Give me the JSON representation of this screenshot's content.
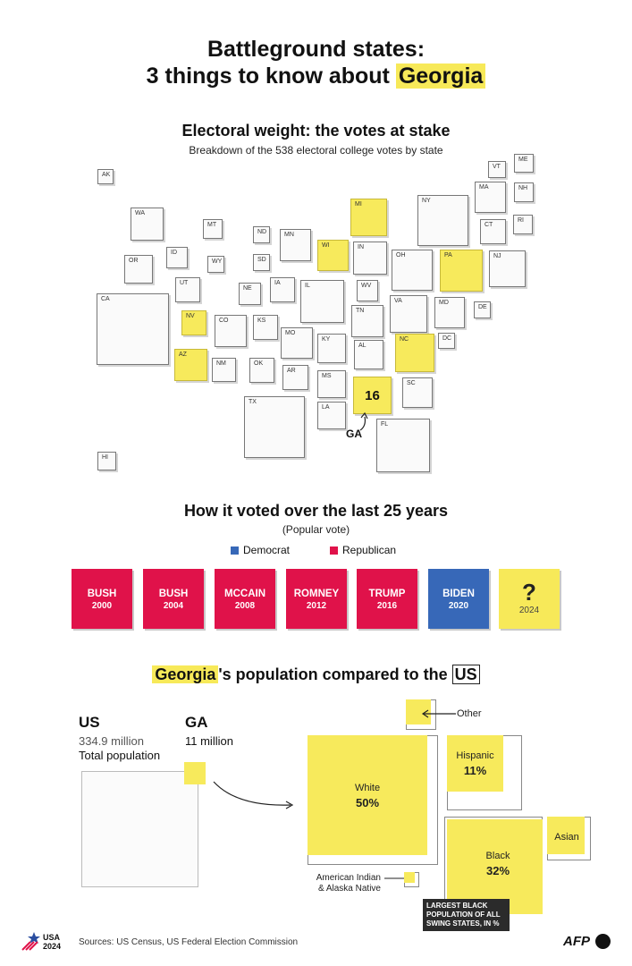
{
  "header": {
    "title_line1": "Battleground states:",
    "title_line2_pre": "3 things to know about ",
    "title_line2_highlight": "Georgia"
  },
  "section1": {
    "title": "Electoral weight: the votes at stake",
    "subtitle": "Breakdown of the 538 electoral college votes by state"
  },
  "chart_data": [
    {
      "type": "other",
      "title": "Electoral weight: the votes at stake",
      "subtitle": "Breakdown of the 538 electoral college votes by state",
      "battleground_states": [
        "MI",
        "WI",
        "PA",
        "NV",
        "AZ",
        "NC",
        "GA"
      ],
      "highlight": {
        "state": "GA",
        "votes": 16
      },
      "states": [
        "AK",
        "WA",
        "MT",
        "ND",
        "MN",
        "WI",
        "MI",
        "NY",
        "VT",
        "ME",
        "MA",
        "NH",
        "RI",
        "CT",
        "NJ",
        "PA",
        "OH",
        "IN",
        "IL",
        "IA",
        "SD",
        "WY",
        "ID",
        "OR",
        "UT",
        "NE",
        "CA",
        "NV",
        "CO",
        "KS",
        "MO",
        "KY",
        "WV",
        "VA",
        "MD",
        "DE",
        "DC",
        "TN",
        "AL",
        "NC",
        "SC",
        "GA",
        "FL",
        "MS",
        "LA",
        "AR",
        "OK",
        "NM",
        "AZ",
        "TX",
        "HI"
      ]
    },
    {
      "type": "table",
      "title": "How it voted over the last 25 years",
      "subtitle": "(Popular vote)",
      "legend": [
        {
          "name": "Democrat",
          "color": "#3768b8"
        },
        {
          "name": "Republican",
          "color": "#e0124a"
        }
      ],
      "results": [
        {
          "candidate": "BUSH",
          "year": "2000",
          "party": "rep"
        },
        {
          "candidate": "BUSH",
          "year": "2004",
          "party": "rep"
        },
        {
          "candidate": "MCCAIN",
          "year": "2008",
          "party": "rep"
        },
        {
          "candidate": "ROMNEY",
          "year": "2012",
          "party": "rep"
        },
        {
          "candidate": "TRUMP",
          "year": "2016",
          "party": "rep"
        },
        {
          "candidate": "BIDEN",
          "year": "2020",
          "party": "dem"
        },
        {
          "candidate": "?",
          "year": "2024",
          "party": "unknown"
        }
      ]
    },
    {
      "type": "other",
      "title": "Georgia's population compared to the US",
      "population": [
        {
          "name": "US",
          "value": "334.9 million",
          "label": "Total population"
        },
        {
          "name": "GA",
          "value": "11 million"
        }
      ],
      "breakdown_percent": [
        {
          "name": "White",
          "value": 50
        },
        {
          "name": "Black",
          "value": 32
        },
        {
          "name": "Hispanic",
          "value": 11
        },
        {
          "name": "Asian"
        },
        {
          "name": "Other"
        },
        {
          "name": "American Indian & Alaska Native"
        }
      ]
    }
  ],
  "map": {
    "states": {
      "AK": "AK",
      "WA": "WA",
      "MT": "MT",
      "ND": "ND",
      "MN": "MN",
      "WI": "WI",
      "MI": "MI",
      "NY": "NY",
      "VT": "VT",
      "ME": "ME",
      "MA": "MA",
      "NH": "NH",
      "RI": "RI",
      "CT": "CT",
      "NJ": "NJ",
      "PA": "PA",
      "OH": "OH",
      "IN": "IN",
      "IL": "IL",
      "IA": "IA",
      "SD": "SD",
      "WY": "WY",
      "ID": "ID",
      "OR": "OR",
      "UT": "UT",
      "NE": "NE",
      "CA": "CA",
      "NV": "NV",
      "CO": "CO",
      "KS": "KS",
      "MO": "MO",
      "KY": "KY",
      "WV": "WV",
      "VA": "VA",
      "MD": "MD",
      "DE": "DE",
      "DC": "DC",
      "TN": "TN",
      "AL": "AL",
      "NC": "NC",
      "SC": "SC",
      "FL": "FL",
      "MS": "MS",
      "LA": "LA",
      "AR": "AR",
      "OK": "OK",
      "NM": "NM",
      "AZ": "AZ",
      "TX": "TX",
      "HI": "HI"
    },
    "ga_votes": "16",
    "ga_label": "GA",
    "highlight_color": "#f7ea5c"
  },
  "section2": {
    "title": "How it voted over the last 25 years",
    "subtitle": "(Popular vote)",
    "legend_dem": "Democrat",
    "legend_rep": "Republican",
    "dem_color": "#3768b8",
    "rep_color": "#e0124a",
    "votes": [
      {
        "name": "BUSH",
        "year": "2000"
      },
      {
        "name": "BUSH",
        "year": "2004"
      },
      {
        "name": "MCCAIN",
        "year": "2008"
      },
      {
        "name": "ROMNEY",
        "year": "2012"
      },
      {
        "name": "TRUMP",
        "year": "2016"
      },
      {
        "name": "BIDEN",
        "year": "2020"
      },
      {
        "name": "?",
        "year": "2024"
      }
    ]
  },
  "section3": {
    "title_highlight1": "Georgia",
    "title_mid": "'s population compared to the ",
    "title_highlight2": "US",
    "us_label": "US",
    "us_value": "334.9 million",
    "us_caption": "Total population",
    "ga_label": "GA",
    "ga_value": "11 million",
    "white_label": "White",
    "white_value": "50%",
    "black_label": "Black",
    "black_value": "32%",
    "hispanic_label": "Hispanic",
    "hispanic_value": "11%",
    "asian_label": "Asian",
    "other_label": "Other",
    "native_label_1": "American Indian",
    "native_label_2": "& Alaska Native",
    "callout_1": "LARGEST BLACK",
    "callout_2": "POPULATION OF ALL",
    "callout_3": "SWING STATES, IN %"
  },
  "footer": {
    "logo_line1": "USA",
    "logo_line2": "2024",
    "sources": "Sources: US Census, US Federal Election Commission",
    "afp": "AFP"
  }
}
